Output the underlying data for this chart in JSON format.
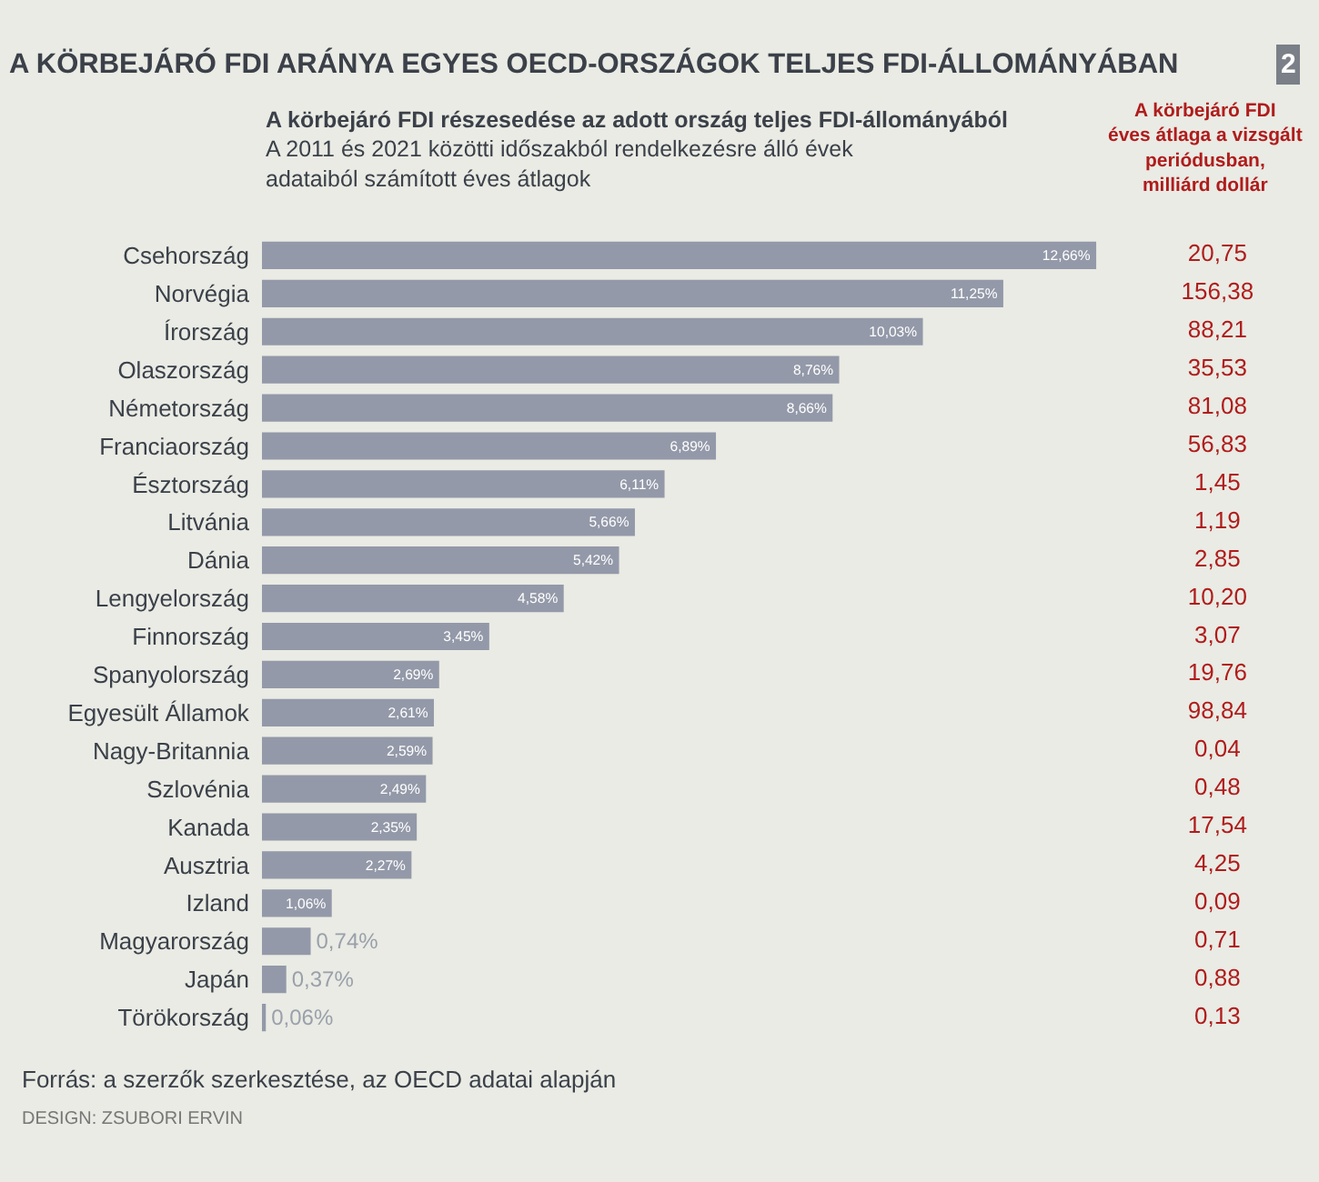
{
  "chart_data": [
    {
      "type": "bar",
      "orientation": "horizontal",
      "title": "A KÖRBEJÁRÓ FDI ARÁNYA EGYES OECD-ORSZÁGOK TELJES FDI-ÁLLOMÁNYÁBAN",
      "subtitle": "A körbejáró FDI részesedése az adott ország teljes FDI-állományából",
      "categories": [
        "Csehország",
        "Norvégia",
        "Írország",
        "Olaszország",
        "Németország",
        "Franciaország",
        "Észtország",
        "Litvánia",
        "Dánia",
        "Lengyelország",
        "Finnország",
        "Spanyolország",
        "Egyesült Államok",
        "Nagy-Britannia",
        "Szlovénia",
        "Kanada",
        "Ausztria",
        "Izland",
        "Magyarország",
        "Japán",
        "Törökország"
      ],
      "values": [
        12.66,
        11.25,
        10.03,
        8.76,
        8.66,
        6.89,
        6.11,
        5.66,
        5.42,
        4.58,
        3.45,
        2.69,
        2.61,
        2.59,
        2.49,
        2.35,
        2.27,
        1.06,
        0.74,
        0.37,
        0.06
      ],
      "value_labels": [
        "12,66%",
        "11,25%",
        "10,03%",
        "8,76%",
        "8,66%",
        "6,89%",
        "6,11%",
        "5,66%",
        "5,42%",
        "4,58%",
        "3,45%",
        "2,69%",
        "2,61%",
        "2,59%",
        "2,49%",
        "2,35%",
        "2,27%",
        "1,06%",
        "0,74%",
        "0,37%",
        "0,06%"
      ],
      "color": "#9399a8",
      "annotations": [
        "A 2011 és 2021 közötti időszakból rendelkezésre álló évek adataiból számított éves átlagok",
        "Forrás: a szerzők szerkesztése, az OECD adatai alapján",
        "DESIGN: ZSUBORI ERVIN",
        "2"
      ]
    },
    {
      "type": "other",
      "title": "A körbejáró FDI éves átlaga a vizsgált periódusban, milliárd dollár",
      "values": [
        20.75,
        156.38,
        88.21,
        35.53,
        81.08,
        56.83,
        1.45,
        1.19,
        2.85,
        10.2,
        3.07,
        19.76,
        98.84,
        0.04,
        0.48,
        17.54,
        4.25,
        0.09,
        0.71,
        0.88,
        0.13
      ],
      "value_labels": [
        "20,75",
        "156,38",
        "88,21",
        "35,53",
        "81,08",
        "56,83",
        "1,45",
        "1,19",
        "2,85",
        "10,20",
        "3,07",
        "19,76",
        "98,84",
        "0,04",
        "0,48",
        "17,54",
        "4,25",
        "0,09",
        "0,71",
        "0,88",
        "0,13"
      ],
      "color": "#b01c1c"
    }
  ]
}
